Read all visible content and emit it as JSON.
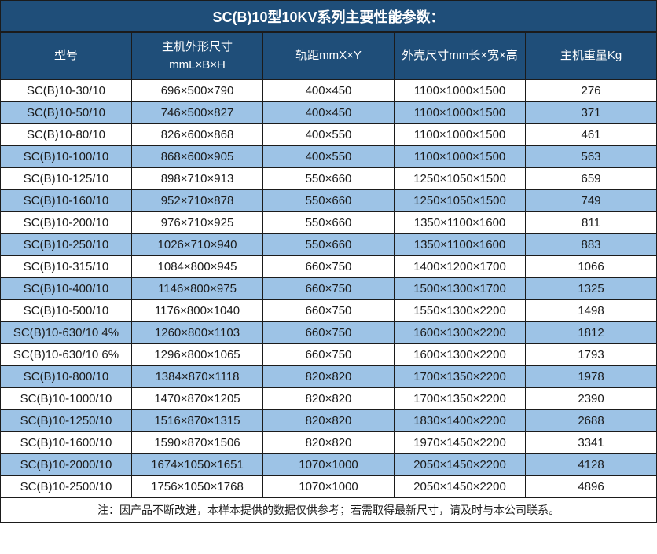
{
  "page": {
    "title": "SC(B)10型10KV系列主要性能参数："
  },
  "table": {
    "columns": [
      {
        "label": "型号"
      },
      {
        "label": "主机外形尺寸",
        "label2": "mmL×B×H"
      },
      {
        "label": "轨距mmX×Y"
      },
      {
        "label": "外壳尺寸mm长×宽×高"
      },
      {
        "label": "主机重量Kg"
      }
    ],
    "rows": [
      [
        "SC(B)10-30/10",
        "696×500×790",
        "400×450",
        "1100×1000×1500",
        "276"
      ],
      [
        "SC(B)10-50/10",
        "746×500×827",
        "400×450",
        "1100×1000×1500",
        "371"
      ],
      [
        "SC(B)10-80/10",
        "826×600×868",
        "400×550",
        "1100×1000×1500",
        "461"
      ],
      [
        "SC(B)10-100/10",
        "868×600×905",
        "400×550",
        "1100×1000×1500",
        "563"
      ],
      [
        "SC(B)10-125/10",
        "898×710×913",
        "550×660",
        "1250×1050×1500",
        "659"
      ],
      [
        "SC(B)10-160/10",
        "952×710×878",
        "550×660",
        "1250×1050×1500",
        "749"
      ],
      [
        "SC(B)10-200/10",
        "976×710×925",
        "550×660",
        "1350×1100×1600",
        "811"
      ],
      [
        "SC(B)10-250/10",
        "1026×710×940",
        "550×660",
        "1350×1100×1600",
        "883"
      ],
      [
        "SC(B)10-315/10",
        "1084×800×945",
        "660×750",
        "1400×1200×1700",
        "1066"
      ],
      [
        "SC(B)10-400/10",
        "1146×800×975",
        "660×750",
        "1500×1300×1700",
        "1325"
      ],
      [
        "SC(B)10-500/10",
        "1176×800×1040",
        "660×750",
        "1550×1300×2200",
        "1498"
      ],
      [
        "SC(B)10-630/10 4%",
        "1260×800×1103",
        "660×750",
        "1600×1300×2200",
        "1812"
      ],
      [
        "SC(B)10-630/10 6%",
        "1296×800×1065",
        "660×750",
        "1600×1300×2200",
        "1793"
      ],
      [
        "SC(B)10-800/10",
        "1384×870×1118",
        "820×820",
        "1700×1350×2200",
        "1978"
      ],
      [
        "SC(B)10-1000/10",
        "1470×870×1205",
        "820×820",
        "1700×1350×2200",
        "2390"
      ],
      [
        "SC(B)10-1250/10",
        "1516×870×1315",
        "820×820",
        "1830×1400×2200",
        "2688"
      ],
      [
        "SC(B)10-1600/10",
        "1590×870×1506",
        "820×820",
        "1970×1450×2200",
        "3341"
      ],
      [
        "SC(B)10-2000/10",
        "1674×1050×1651",
        "1070×1000",
        "2050×1450×2200",
        "4128"
      ],
      [
        "SC(B)10-2500/10",
        "1756×1050×1768",
        "1070×1000",
        "2050×1450×2200",
        "4896"
      ]
    ]
  },
  "footer": {
    "note": "注：因产品不断改进，本样本提供的数据仅供参考；若需取得最新尺寸，请及时与本公司联系。"
  },
  "colors": {
    "header_bg": "#1F4E79",
    "row_alt_bg": "#9DC3E6",
    "row_bg": "#FFFFFF",
    "border": "#1B1B1B",
    "header_text": "#FFFFFF",
    "body_text": "#1A1A1A"
  }
}
